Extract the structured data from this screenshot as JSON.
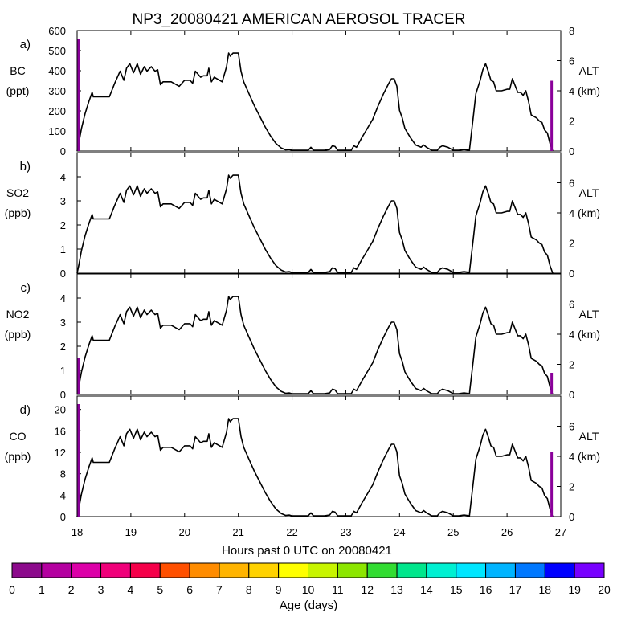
{
  "chart_data": {
    "type": "line",
    "title": "NP3_20080421 AMERICAN AEROSOL TRACER",
    "xlabel": "Hours past 0 UTC on 20080421",
    "x_tick_labels": [
      "18",
      "19",
      "20",
      "21",
      "22",
      "23",
      "24",
      "25",
      "26",
      "27"
    ],
    "xlim": [
      18,
      27
    ],
    "grid": false,
    "altitude_profile": {
      "x": [
        18.0,
        18.03,
        18.08,
        18.15,
        18.22,
        18.28,
        18.3,
        18.45,
        18.6,
        18.7,
        18.8,
        18.87,
        18.92,
        18.98,
        19.05,
        19.12,
        19.18,
        19.25,
        19.3,
        19.38,
        19.45,
        19.5,
        19.55,
        19.6,
        19.75,
        19.9,
        20.0,
        20.1,
        20.15,
        20.2,
        20.3,
        20.35,
        20.42,
        20.45,
        20.5,
        20.55,
        20.7,
        20.78,
        20.82,
        20.85,
        20.9,
        21.0,
        21.05,
        21.1,
        21.2,
        21.3,
        21.4,
        21.5,
        21.6,
        21.7,
        21.8,
        21.88,
        21.95,
        22.0,
        22.1,
        22.2,
        22.3,
        22.35,
        22.4,
        22.45,
        22.6,
        22.7,
        22.75,
        22.8,
        22.85,
        23.0,
        23.1,
        23.15,
        23.2,
        23.3,
        23.4,
        23.5,
        23.6,
        23.7,
        23.8,
        23.85,
        23.9,
        23.95,
        24.0,
        24.05,
        24.1,
        24.2,
        24.3,
        24.4,
        24.45,
        24.5,
        24.6,
        24.7,
        24.75,
        24.8,
        24.85,
        24.9,
        25.0,
        25.1,
        25.2,
        25.3,
        25.38,
        25.42,
        25.5,
        25.55,
        25.6,
        25.65,
        25.7,
        25.75,
        25.8,
        25.9,
        26.0,
        26.05,
        26.1,
        26.2,
        26.25,
        26.3,
        26.35,
        26.4,
        26.45,
        26.5,
        26.55,
        26.6,
        26.65,
        26.7,
        26.75,
        26.8,
        26.85
      ],
      "alt_km": [
        0,
        0.5,
        1.5,
        2.5,
        3.3,
        3.9,
        3.6,
        3.6,
        3.6,
        4.5,
        5.3,
        4.7,
        5.5,
        5.8,
        5.2,
        5.8,
        5.1,
        5.6,
        5.3,
        5.6,
        5.3,
        5.4,
        4.4,
        4.6,
        4.6,
        4.3,
        4.7,
        4.7,
        4.5,
        5.3,
        4.9,
        5.0,
        5.0,
        5.5,
        4.6,
        4.9,
        4.6,
        5.6,
        6.5,
        6.3,
        6.5,
        6.5,
        5.3,
        4.6,
        3.8,
        3.0,
        2.3,
        1.6,
        1.0,
        0.5,
        0.2,
        0.08,
        0.1,
        0.05,
        0.05,
        0.05,
        0.05,
        0.25,
        0.05,
        0.05,
        0.05,
        0.1,
        0.35,
        0.3,
        0.05,
        0.05,
        0.05,
        0.35,
        0.25,
        0.9,
        1.5,
        2.1,
        3.0,
        3.8,
        4.5,
        4.8,
        4.8,
        4.3,
        2.7,
        2.2,
        1.5,
        0.9,
        0.4,
        0.25,
        0.4,
        0.25,
        0.05,
        0.05,
        0.25,
        0.35,
        0.3,
        0.25,
        0.05,
        0.05,
        0.1,
        0.05,
        2.5,
        3.8,
        4.7,
        5.4,
        5.8,
        5.3,
        4.7,
        4.6,
        4.0,
        4.0,
        4.1,
        4.1,
        4.8,
        3.9,
        3.9,
        3.7,
        4.0,
        3.3,
        2.4,
        2.3,
        2.2,
        2.0,
        1.9,
        1.4,
        1.2,
        0.5,
        0.0
      ]
    },
    "panels": [
      {
        "label": "a)",
        "ylabel": [
          "BC",
          "(ppt)"
        ],
        "ylim": [
          0,
          600
        ],
        "yticks": [
          0,
          100,
          200,
          300,
          400,
          500,
          600
        ],
        "right_ylabel": [
          "ALT",
          "(km)"
        ],
        "right_ylim": [
          0,
          8
        ],
        "right_yticks": [
          0,
          2,
          4,
          6,
          8
        ],
        "tracer_bars": [
          {
            "x": 18.03,
            "value": 560,
            "color": "#8a009a"
          },
          {
            "x": 26.83,
            "value": 350,
            "color": "#8a009a"
          }
        ]
      },
      {
        "label": "b)",
        "ylabel": [
          "SO2",
          "(ppb)"
        ],
        "ylim": [
          0,
          5
        ],
        "yticks": [
          0,
          1,
          2,
          3,
          4
        ],
        "right_ylabel": [
          "ALT",
          "(km)"
        ],
        "right_ylim": [
          0,
          8
        ],
        "right_yticks": [
          0,
          2,
          4,
          6
        ],
        "tracer_bars": []
      },
      {
        "label": "c)",
        "ylabel": [
          "NO2",
          "(ppb)"
        ],
        "ylim": [
          0,
          5
        ],
        "yticks": [
          0,
          1,
          2,
          3,
          4
        ],
        "right_ylabel": [
          "ALT",
          "(km)"
        ],
        "right_ylim": [
          0,
          8
        ],
        "right_yticks": [
          0,
          2,
          4,
          6
        ],
        "tracer_bars": [
          {
            "x": 18.03,
            "value": 1.5,
            "color": "#8a009a"
          },
          {
            "x": 26.83,
            "value": 0.9,
            "color": "#8a009a"
          }
        ]
      },
      {
        "label": "d)",
        "ylabel": [
          "CO",
          "(ppb)"
        ],
        "ylim": [
          0,
          22.5
        ],
        "yticks": [
          0,
          4,
          8,
          12,
          16,
          20
        ],
        "right_ylabel": [
          "ALT",
          "(km)"
        ],
        "right_ylim": [
          0,
          8
        ],
        "right_yticks": [
          0,
          2,
          4,
          6
        ],
        "tracer_bars": [
          {
            "x": 18.03,
            "value": 21,
            "color": "#8a009a"
          },
          {
            "x": 26.83,
            "value": 12,
            "color": "#8a009a"
          }
        ]
      }
    ],
    "colorbar": {
      "label": "Age (days)",
      "tick_labels": [
        "0",
        "1",
        "2",
        "3",
        "4",
        "5",
        "6",
        "7",
        "8",
        "9",
        "10",
        "11",
        "12",
        "13",
        "14",
        "15",
        "16",
        "17",
        "18",
        "19",
        "20"
      ],
      "colors": [
        "#8c0a8c",
        "#b400a0",
        "#dc00a8",
        "#f0007a",
        "#f5004a",
        "#ff5000",
        "#ff8c00",
        "#ffb400",
        "#ffd200",
        "#ffff00",
        "#c8f500",
        "#8ce600",
        "#32dc32",
        "#00e68c",
        "#00f0d2",
        "#00e6ff",
        "#00b4ff",
        "#0078ff",
        "#0000ff",
        "#7800ff"
      ]
    }
  }
}
